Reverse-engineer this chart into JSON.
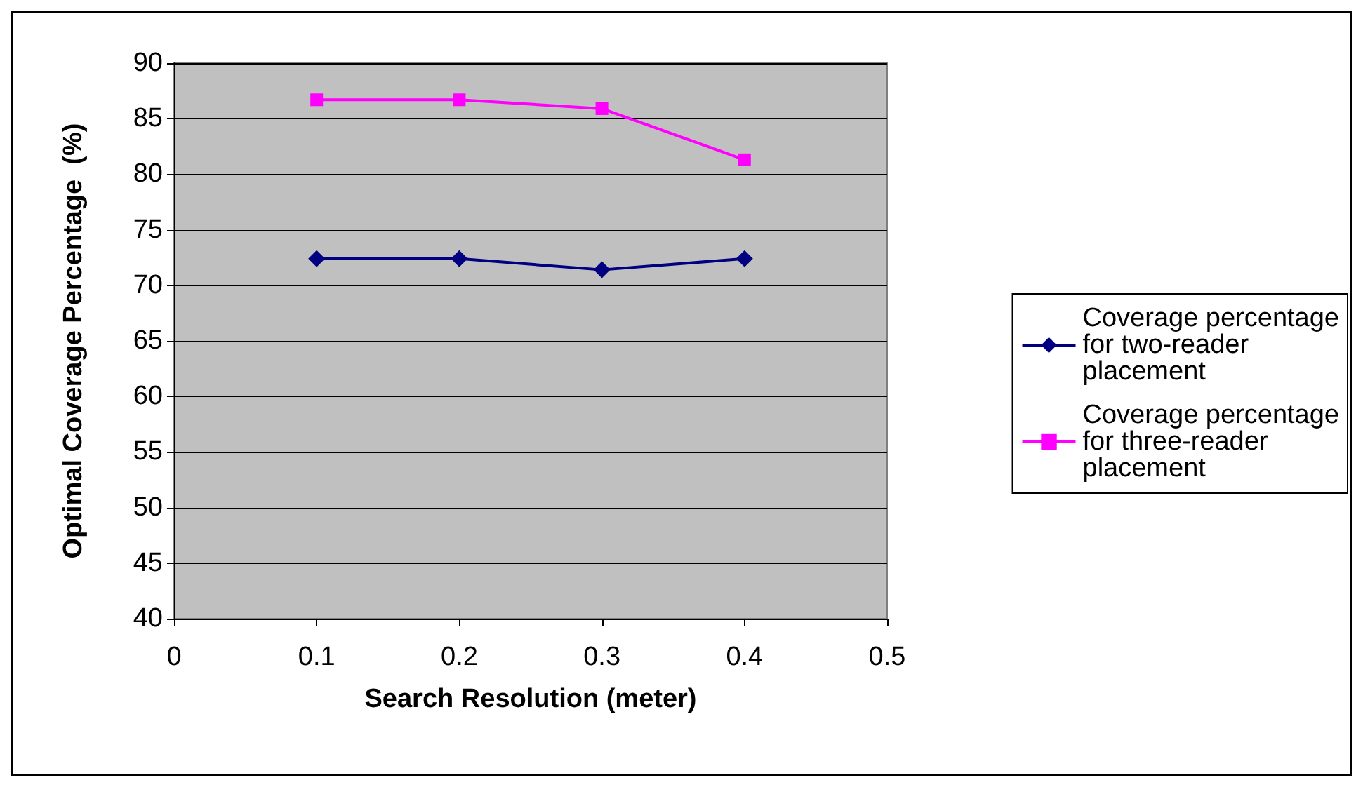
{
  "chart_data": {
    "type": "line",
    "xlabel": "Search Resolution (meter)",
    "ylabel": "Optimal Coverage Percentage  (%)",
    "x": [
      0.1,
      0.2,
      0.3,
      0.4
    ],
    "series": [
      {
        "name": "Coverage percentage for two-reader placement",
        "color": "#000080",
        "marker": "diamond",
        "values": [
          72.4,
          72.4,
          71.4,
          72.4
        ]
      },
      {
        "name": "Coverage percentage for three-reader placement",
        "color": "#ff00ff",
        "marker": "square",
        "values": [
          86.7,
          86.7,
          85.9,
          81.3
        ]
      }
    ],
    "xlim": [
      0,
      0.5
    ],
    "xticks": [
      0,
      0.1,
      0.2,
      0.3,
      0.4,
      0.5
    ],
    "ylim": [
      40,
      90
    ],
    "yticks": [
      40,
      45,
      50,
      55,
      60,
      65,
      70,
      75,
      80,
      85,
      90
    ],
    "grid": "y",
    "legend": "right",
    "line_style": "solid"
  }
}
